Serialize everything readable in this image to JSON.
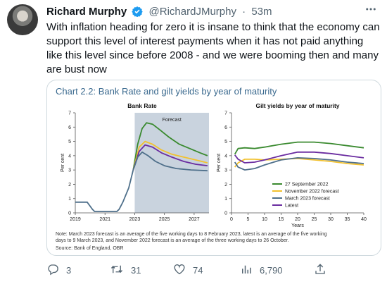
{
  "tweet": {
    "author_name": "Richard Murphy",
    "handle": "@RichardJMurphy",
    "time": "53m",
    "time_sep": "·",
    "text": "With inflation heading for zero it is insane to think that the economy can support this level of interest payments when it has not paid anything like this level since before 2008 - and we were booming then and many are bust now"
  },
  "image": {
    "title": "Chart 2.2: Bank Rate and gilt yields by year of maturity",
    "note": "Note: March 2023 forecast is an average of the five working days to 8 February 2023, latest is an average of the five working days to 9 March 2023, and November 2022 forecast is an average of the three working days to 26 October.",
    "source": "Source: Bank of England, OBR"
  },
  "actions": {
    "reply_count": "3",
    "retweet_count": "31",
    "like_count": "74",
    "view_count": "6,790"
  },
  "colors": {
    "verified": "#1d9bf0",
    "title": "#3b6a8f",
    "series_green": "#3a8a2f",
    "series_yellow": "#f2c12e",
    "series_blue": "#4e6f8a",
    "series_purple": "#6a2ca0",
    "forecast_shade": "#c9d3de"
  },
  "chart_data": [
    {
      "type": "line",
      "title": "Bank Rate",
      "ylabel": "Per cent",
      "ylim": [
        0,
        7
      ],
      "xlim": [
        2019,
        2028
      ],
      "x_ticks": [
        2019,
        2021,
        2023,
        2025,
        2027
      ],
      "y_ticks": [
        0,
        1,
        2,
        3,
        4,
        5,
        6,
        7
      ],
      "annotation": "Forecast",
      "forecast_start": 2023,
      "history": [
        [
          2019,
          0.75
        ],
        [
          2019.8,
          0.75
        ],
        [
          2020.15,
          0.25
        ],
        [
          2020.3,
          0.1
        ],
        [
          2021.8,
          0.1
        ],
        [
          2021.95,
          0.25
        ],
        [
          2022.2,
          0.75
        ],
        [
          2022.6,
          1.75
        ],
        [
          2022.9,
          3.0
        ]
      ],
      "series": [
        {
          "name": "27 September 2022",
          "color": "#3a8a2f",
          "x": [
            2022.9,
            2023.2,
            2023.5,
            2023.8,
            2024.2,
            2024.7,
            2025.3,
            2026.0,
            2026.7,
            2027.4,
            2027.9
          ],
          "y": [
            3.0,
            4.8,
            5.9,
            6.3,
            6.2,
            5.8,
            5.3,
            4.8,
            4.5,
            4.2,
            4.0
          ]
        },
        {
          "name": "November 2022 forecast",
          "color": "#f2c12e",
          "x": [
            2022.9,
            2023.3,
            2023.7,
            2024.2,
            2024.8,
            2025.5,
            2026.3,
            2027.1,
            2027.9
          ],
          "y": [
            3.0,
            4.6,
            5.0,
            4.8,
            4.4,
            4.1,
            3.9,
            3.7,
            3.5
          ]
        },
        {
          "name": "Latest",
          "color": "#6a2ca0",
          "x": [
            2022.9,
            2023.3,
            2023.7,
            2024.2,
            2024.8,
            2025.5,
            2026.3,
            2027.1,
            2027.9
          ],
          "y": [
            3.0,
            4.3,
            4.75,
            4.6,
            4.2,
            3.9,
            3.6,
            3.4,
            3.3
          ]
        },
        {
          "name": "March 2023 forecast",
          "color": "#4e6f8a",
          "x": [
            2022.9,
            2023.2,
            2023.5,
            2023.9,
            2024.4,
            2025.0,
            2025.8,
            2026.8,
            2027.9
          ],
          "y": [
            3.0,
            3.9,
            4.25,
            4.0,
            3.6,
            3.3,
            3.1,
            3.0,
            2.95
          ]
        }
      ]
    },
    {
      "type": "line",
      "title": "Gilt yields by year of maturity",
      "ylabel": "Per cent",
      "xlabel": "Years",
      "ylim": [
        0,
        7
      ],
      "xlim": [
        0,
        40
      ],
      "x_ticks": [
        0,
        5,
        10,
        15,
        20,
        25,
        30,
        35,
        40
      ],
      "y_ticks": [
        0,
        1,
        2,
        3,
        4,
        5,
        6,
        7
      ],
      "legend": "bottom-right",
      "series": [
        {
          "name": "27 September 2022",
          "color": "#3a8a2f",
          "x": [
            1,
            2,
            4,
            7,
            10,
            15,
            20,
            25,
            30,
            35,
            40
          ],
          "y": [
            4.1,
            4.5,
            4.55,
            4.5,
            4.6,
            4.8,
            4.95,
            4.95,
            4.85,
            4.7,
            4.55
          ]
        },
        {
          "name": "November 2022 forecast",
          "color": "#f2c12e",
          "x": [
            1,
            2,
            4,
            7,
            10,
            15,
            20,
            25,
            30,
            35,
            40
          ],
          "y": [
            3.2,
            3.5,
            3.75,
            3.75,
            3.7,
            3.75,
            3.8,
            3.7,
            3.6,
            3.45,
            3.35
          ]
        },
        {
          "name": "March 2023 forecast",
          "color": "#4e6f8a",
          "x": [
            1,
            2,
            4,
            7,
            10,
            15,
            20,
            25,
            30,
            35,
            40
          ],
          "y": [
            3.55,
            3.2,
            3.0,
            3.1,
            3.35,
            3.7,
            3.85,
            3.8,
            3.7,
            3.55,
            3.45
          ]
        },
        {
          "name": "Latest",
          "color": "#6a2ca0",
          "x": [
            1,
            2,
            4,
            7,
            10,
            15,
            20,
            25,
            30,
            35,
            40
          ],
          "y": [
            4.05,
            3.75,
            3.5,
            3.55,
            3.7,
            4.0,
            4.25,
            4.25,
            4.15,
            4.0,
            3.85
          ]
        }
      ]
    }
  ]
}
